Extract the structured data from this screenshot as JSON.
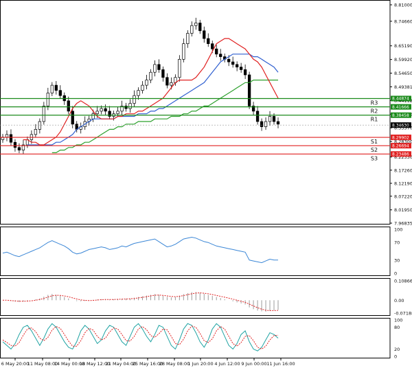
{
  "chart_data": {
    "type": "candlestick",
    "main": {
      "y_ticks": [
        "8.81000",
        "8.74660",
        "8.65190",
        "8.59920",
        "8.54650",
        "8.49381",
        "8.44112",
        "8.38840",
        "8.33570",
        "8.28300",
        "8.22330",
        "8.17260",
        "8.12190",
        "8.07220",
        "8.01950",
        "7.96835"
      ],
      "ylim": [
        7.96835,
        8.81
      ],
      "levels": [
        {
          "name": "R3",
          "value": 8.44874,
          "label": "8.44874",
          "color": "#1a8a1a"
        },
        {
          "name": "R2",
          "value": 8.41666,
          "label": "8.41666",
          "color": "#1a8a1a"
        },
        {
          "name": "R1",
          "value": 8.38458,
          "label": "8.38458",
          "color": "#1a8a1a"
        },
        {
          "name": "S1",
          "value": 8.29902,
          "label": "8.29902",
          "color": "#e02020"
        },
        {
          "name": "S2",
          "value": 8.26694,
          "label": "8.26694",
          "color": "#e02020"
        },
        {
          "name": "S3",
          "value": 8.23486,
          "label": "8.23486",
          "color": "#e02020"
        }
      ],
      "current_price": {
        "value": 8.3463,
        "label": "8.34630"
      },
      "close": [
        8.3,
        8.31,
        8.28,
        8.26,
        8.25,
        8.27,
        8.29,
        8.31,
        8.33,
        8.36,
        8.42,
        8.47,
        8.5,
        8.48,
        8.46,
        8.44,
        8.4,
        8.35,
        8.33,
        8.34,
        8.36,
        8.37,
        8.39,
        8.4,
        8.41,
        8.4,
        8.38,
        8.39,
        8.4,
        8.42,
        8.41,
        8.43,
        8.46,
        8.48,
        8.5,
        8.52,
        8.55,
        8.58,
        8.56,
        8.53,
        8.5,
        8.51,
        8.53,
        8.6,
        8.66,
        8.7,
        8.73,
        8.74,
        8.71,
        8.68,
        8.66,
        8.64,
        8.62,
        8.61,
        8.6,
        8.59,
        8.58,
        8.57,
        8.56,
        8.54,
        8.42,
        8.4,
        8.36,
        8.34,
        8.36,
        8.38,
        8.36,
        8.35
      ],
      "sma_red": [
        8.29,
        8.29,
        8.28,
        8.28,
        8.27,
        8.27,
        8.28,
        8.29,
        8.3,
        8.32,
        8.35,
        8.38,
        8.41,
        8.43,
        8.44,
        8.43,
        8.42,
        8.4,
        8.38,
        8.37,
        8.37,
        8.37,
        8.37,
        8.38,
        8.38,
        8.39,
        8.39,
        8.39,
        8.4,
        8.4,
        8.41,
        8.42,
        8.43,
        8.44,
        8.45,
        8.47,
        8.49,
        8.51,
        8.52,
        8.52,
        8.52,
        8.52,
        8.53,
        8.55,
        8.57,
        8.6,
        8.63,
        8.66,
        8.67,
        8.68,
        8.68,
        8.67,
        8.66,
        8.65,
        8.64,
        8.62,
        8.6,
        8.59,
        8.57,
        8.54,
        8.51,
        8.48,
        8.45
      ],
      "sma_blue": [
        8.27,
        8.27,
        8.27,
        8.27,
        8.27,
        8.27,
        8.27,
        8.28,
        8.28,
        8.29,
        8.3,
        8.31,
        8.33,
        8.34,
        8.35,
        8.36,
        8.37,
        8.37,
        8.37,
        8.37,
        8.37,
        8.37,
        8.38,
        8.38,
        8.38,
        8.38,
        8.38,
        8.39,
        8.39,
        8.39,
        8.4,
        8.4,
        8.41,
        8.41,
        8.42,
        8.43,
        8.44,
        8.45,
        8.46,
        8.47,
        8.48,
        8.49,
        8.5,
        8.51,
        8.53,
        8.55,
        8.57,
        8.59,
        8.6,
        8.61,
        8.62,
        8.62,
        8.62,
        8.62,
        8.62,
        8.61,
        8.61,
        8.6,
        8.59,
        8.58,
        8.57,
        8.55
      ],
      "sma_green": [
        8.24,
        8.24,
        8.25,
        8.25,
        8.26,
        8.26,
        8.27,
        8.27,
        8.28,
        8.28,
        8.29,
        8.3,
        8.31,
        8.32,
        8.33,
        8.33,
        8.34,
        8.34,
        8.35,
        8.35,
        8.35,
        8.36,
        8.36,
        8.36,
        8.36,
        8.37,
        8.37,
        8.37,
        8.37,
        8.38,
        8.38,
        8.38,
        8.39,
        8.39,
        8.4,
        8.4,
        8.41,
        8.42,
        8.42,
        8.43,
        8.44,
        8.45,
        8.46,
        8.47,
        8.48,
        8.49,
        8.5,
        8.51,
        8.51,
        8.52,
        8.52,
        8.52,
        8.52,
        8.52,
        8.52,
        8.52
      ]
    },
    "rsi": {
      "y_ticks": [
        "100",
        "70",
        "30",
        "0"
      ],
      "ylim": [
        0,
        100
      ],
      "values": [
        46,
        48,
        44,
        40,
        38,
        42,
        46,
        50,
        54,
        58,
        64,
        70,
        74,
        70,
        66,
        62,
        56,
        48,
        44,
        46,
        50,
        54,
        56,
        58,
        60,
        58,
        54,
        56,
        58,
        62,
        60,
        64,
        68,
        70,
        72,
        74,
        76,
        78,
        72,
        66,
        60,
        62,
        66,
        72,
        78,
        80,
        82,
        80,
        76,
        72,
        70,
        66,
        62,
        60,
        58,
        56,
        54,
        52,
        50,
        48,
        30,
        28,
        26,
        24,
        28,
        32,
        30,
        30
      ]
    },
    "macd": {
      "y_ticks": [
        "0.108667",
        "0.00",
        "-0.071888"
      ],
      "ylim": [
        -0.0719,
        0.1087
      ],
      "histogram": [
        0.0,
        0.0,
        -0.005,
        -0.008,
        -0.01,
        -0.008,
        -0.004,
        0.0,
        0.005,
        0.01,
        0.02,
        0.03,
        0.035,
        0.03,
        0.025,
        0.018,
        0.01,
        0.0,
        -0.005,
        -0.006,
        -0.004,
        -0.002,
        0.002,
        0.004,
        0.006,
        0.006,
        0.004,
        0.005,
        0.006,
        0.008,
        0.008,
        0.01,
        0.014,
        0.018,
        0.022,
        0.026,
        0.03,
        0.034,
        0.03,
        0.024,
        0.018,
        0.016,
        0.018,
        0.026,
        0.034,
        0.04,
        0.045,
        0.046,
        0.042,
        0.036,
        0.03,
        0.024,
        0.018,
        0.012,
        0.006,
        0.0,
        -0.006,
        -0.012,
        -0.018,
        -0.024,
        -0.04,
        -0.05,
        -0.058,
        -0.062,
        -0.064,
        -0.06,
        -0.056,
        -0.054
      ],
      "signal": [
        0.0,
        0.0,
        -0.002,
        -0.004,
        -0.006,
        -0.006,
        -0.005,
        -0.003,
        0.0,
        0.004,
        0.01,
        0.018,
        0.025,
        0.028,
        0.027,
        0.024,
        0.019,
        0.013,
        0.007,
        0.002,
        -0.001,
        -0.002,
        -0.001,
        0.001,
        0.003,
        0.004,
        0.004,
        0.004,
        0.005,
        0.006,
        0.007,
        0.008,
        0.01,
        0.013,
        0.016,
        0.02,
        0.024,
        0.028,
        0.029,
        0.027,
        0.024,
        0.021,
        0.02,
        0.022,
        0.026,
        0.031,
        0.036,
        0.04,
        0.041,
        0.039,
        0.036,
        0.032,
        0.027,
        0.022,
        0.017,
        0.012,
        0.006,
        0.0,
        -0.006,
        -0.012,
        -0.022,
        -0.032,
        -0.042,
        -0.05,
        -0.056,
        -0.058,
        -0.058,
        -0.057
      ]
    },
    "stochastic": {
      "y_ticks": [
        "100",
        "80",
        "20",
        "0"
      ],
      "ylim": [
        0,
        100
      ],
      "k": [
        40,
        30,
        20,
        35,
        60,
        80,
        85,
        70,
        50,
        30,
        50,
        75,
        90,
        80,
        60,
        40,
        25,
        20,
        40,
        70,
        85,
        75,
        55,
        35,
        45,
        70,
        85,
        80,
        60,
        40,
        30,
        55,
        80,
        90,
        75,
        55,
        40,
        60,
        85,
        80,
        55,
        30,
        20,
        45,
        75,
        90,
        85,
        65,
        40,
        25,
        45,
        75,
        90,
        80,
        55,
        30,
        20,
        35,
        60,
        70,
        40,
        20,
        15,
        25,
        45,
        65,
        60,
        50
      ],
      "d": [
        45,
        38,
        30,
        28,
        38,
        58,
        75,
        78,
        68,
        50,
        43,
        52,
        72,
        82,
        77,
        60,
        42,
        28,
        28,
        43,
        65,
        77,
        72,
        55,
        45,
        50,
        67,
        78,
        75,
        60,
        43,
        42,
        55,
        75,
        82,
        73,
        57,
        52,
        62,
        75,
        73,
        55,
        35,
        32,
        47,
        70,
        83,
        80,
        63,
        43,
        38,
        48,
        70,
        82,
        75,
        55,
        35,
        28,
        38,
        55,
        57,
        43,
        25,
        20,
        28,
        45,
        57,
        58
      ]
    },
    "x_ticks": [
      "6 May 20:00",
      "11 May 08:00",
      "14 May 00:00",
      "18 May 12:00",
      "21 May 04:00",
      "25 May 16:00",
      "28 May 08:00",
      "1 Jun 20:00",
      "4 Jun 12:00",
      "9 Jun 00:00",
      "11 Jun 16:00"
    ]
  }
}
